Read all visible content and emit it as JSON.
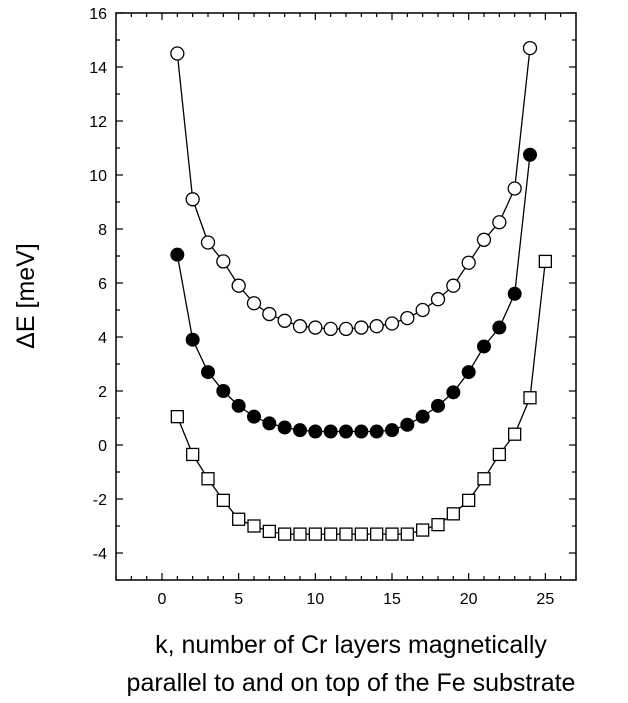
{
  "chart_data": {
    "type": "scatter",
    "title": "",
    "xlabel_line1": "k, number of Cr layers magnetically",
    "xlabel_line2": "parallel to and on top of the Fe substrate",
    "ylabel": "ΔE  [meV]",
    "xlim": [
      -3,
      27
    ],
    "ylim": [
      -5,
      16
    ],
    "x_ticks": [
      0,
      5,
      10,
      15,
      20,
      25
    ],
    "y_ticks": [
      -4,
      -2,
      0,
      2,
      4,
      6,
      8,
      10,
      12,
      14,
      16
    ],
    "grid": false,
    "legend": "none",
    "series": [
      {
        "marker": "open-circle",
        "x": [
          1,
          2,
          3,
          4,
          5,
          6,
          7,
          8,
          9,
          10,
          11,
          12,
          13,
          14,
          15,
          16,
          17,
          18,
          19,
          20,
          21,
          22,
          23,
          24
        ],
        "y": [
          14.5,
          9.1,
          7.5,
          6.8,
          5.9,
          5.25,
          4.85,
          4.6,
          4.4,
          4.35,
          4.3,
          4.3,
          4.35,
          4.4,
          4.5,
          4.7,
          5.0,
          5.4,
          5.9,
          6.75,
          7.6,
          8.25,
          9.5,
          14.7
        ]
      },
      {
        "marker": "filled-circle",
        "x": [
          1,
          2,
          3,
          4,
          5,
          6,
          7,
          8,
          9,
          10,
          11,
          12,
          13,
          14,
          15,
          16,
          17,
          18,
          19,
          20,
          21,
          22,
          23,
          24
        ],
        "y": [
          7.05,
          3.9,
          2.7,
          2.0,
          1.45,
          1.05,
          0.8,
          0.65,
          0.55,
          0.5,
          0.5,
          0.5,
          0.5,
          0.5,
          0.55,
          0.75,
          1.05,
          1.45,
          1.95,
          2.7,
          3.65,
          4.35,
          5.6,
          10.75
        ]
      },
      {
        "marker": "open-square",
        "x": [
          1,
          2,
          3,
          4,
          5,
          6,
          7,
          8,
          9,
          10,
          11,
          12,
          13,
          14,
          15,
          16,
          17,
          18,
          19,
          20,
          21,
          22,
          23,
          24,
          25
        ],
        "y": [
          1.05,
          -0.35,
          -1.25,
          -2.05,
          -2.75,
          -3.0,
          -3.2,
          -3.3,
          -3.3,
          -3.3,
          -3.3,
          -3.3,
          -3.3,
          -3.3,
          -3.3,
          -3.3,
          -3.15,
          -2.95,
          -2.55,
          -2.05,
          -1.25,
          -0.35,
          0.4,
          1.75,
          6.8
        ]
      }
    ]
  }
}
